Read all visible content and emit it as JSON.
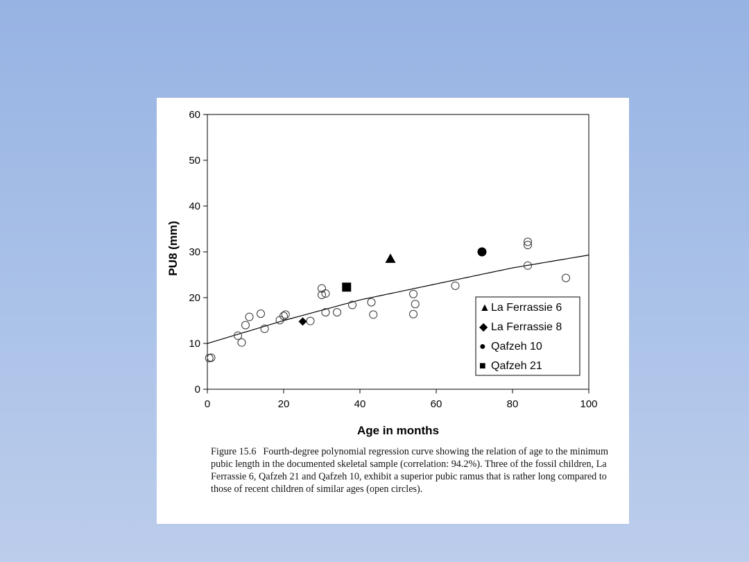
{
  "chart_data": {
    "type": "scatter",
    "xlabel": "Age in months",
    "ylabel": "PU8 (mm)",
    "xlim": [
      0,
      100
    ],
    "ylim": [
      0,
      60
    ],
    "xticks": [
      "0",
      "20",
      "40",
      "60",
      "80",
      "100"
    ],
    "yticks": [
      "0",
      "10",
      "20",
      "30",
      "40",
      "50",
      "60"
    ],
    "series": [
      {
        "name": "Recent children (open circles)",
        "marker": "open-circle",
        "points": [
          [
            0.5,
            6.8
          ],
          [
            1,
            6.9
          ],
          [
            8,
            11.7
          ],
          [
            9,
            10.2
          ],
          [
            10,
            14
          ],
          [
            11,
            15.8
          ],
          [
            14,
            16.5
          ],
          [
            15,
            13.2
          ],
          [
            19,
            15.1
          ],
          [
            20,
            16
          ],
          [
            20.5,
            16.3
          ],
          [
            27,
            14.9
          ],
          [
            30,
            22
          ],
          [
            30,
            20.6
          ],
          [
            31,
            20.9
          ],
          [
            31,
            16.8
          ],
          [
            34,
            16.8
          ],
          [
            38,
            18.4
          ],
          [
            43,
            19
          ],
          [
            43.5,
            16.3
          ],
          [
            54,
            20.8
          ],
          [
            54.5,
            18.6
          ],
          [
            54,
            16.4
          ],
          [
            65,
            22.6
          ],
          [
            84,
            32.2
          ],
          [
            84,
            31.5
          ],
          [
            84,
            27
          ],
          [
            94,
            24.3
          ]
        ]
      },
      {
        "name": "La Ferrassie 6",
        "marker": "triangle",
        "points": [
          [
            48,
            28.5
          ]
        ]
      },
      {
        "name": "La Ferrassie 8",
        "marker": "diamond",
        "points": [
          [
            25,
            14.8
          ]
        ]
      },
      {
        "name": "Qafzeh 10",
        "marker": "circle",
        "points": [
          [
            72,
            30
          ]
        ]
      },
      {
        "name": "Qafzeh 21",
        "marker": "square",
        "points": [
          [
            36.5,
            22.3
          ]
        ]
      }
    ],
    "regression_curve": {
      "name": "Fourth-degree polynomial regression",
      "points": [
        [
          0,
          10
        ],
        [
          20,
          15
        ],
        [
          40,
          19.5
        ],
        [
          60,
          23
        ],
        [
          80,
          26.5
        ],
        [
          100,
          29.3
        ]
      ]
    },
    "legend": {
      "placement": "bottom-right",
      "entries": [
        {
          "symbol": "▲",
          "label": "La Ferrassie 6"
        },
        {
          "symbol": "◆",
          "label": "La Ferrassie 8"
        },
        {
          "symbol": "●",
          "label": "Qafzeh 10"
        },
        {
          "symbol": "■",
          "label": "Qafzeh 21"
        }
      ]
    }
  },
  "caption": {
    "label": "Figure 15.6",
    "text": "Fourth-degree polynomial regression curve showing the relation of age to the minimum pubic length in the documented skeletal sample (correlation: 94.2%). Three of the fossil children, La Ferrassie 6, Qafzeh 21 and Qafzeh 10, exhibit a superior pubic ramus that is rather long compared to those of recent children of similar ages (open circles)."
  },
  "colors": {
    "background": "#a9c1e8",
    "panel": "#ffffff",
    "ink": "#000000"
  }
}
